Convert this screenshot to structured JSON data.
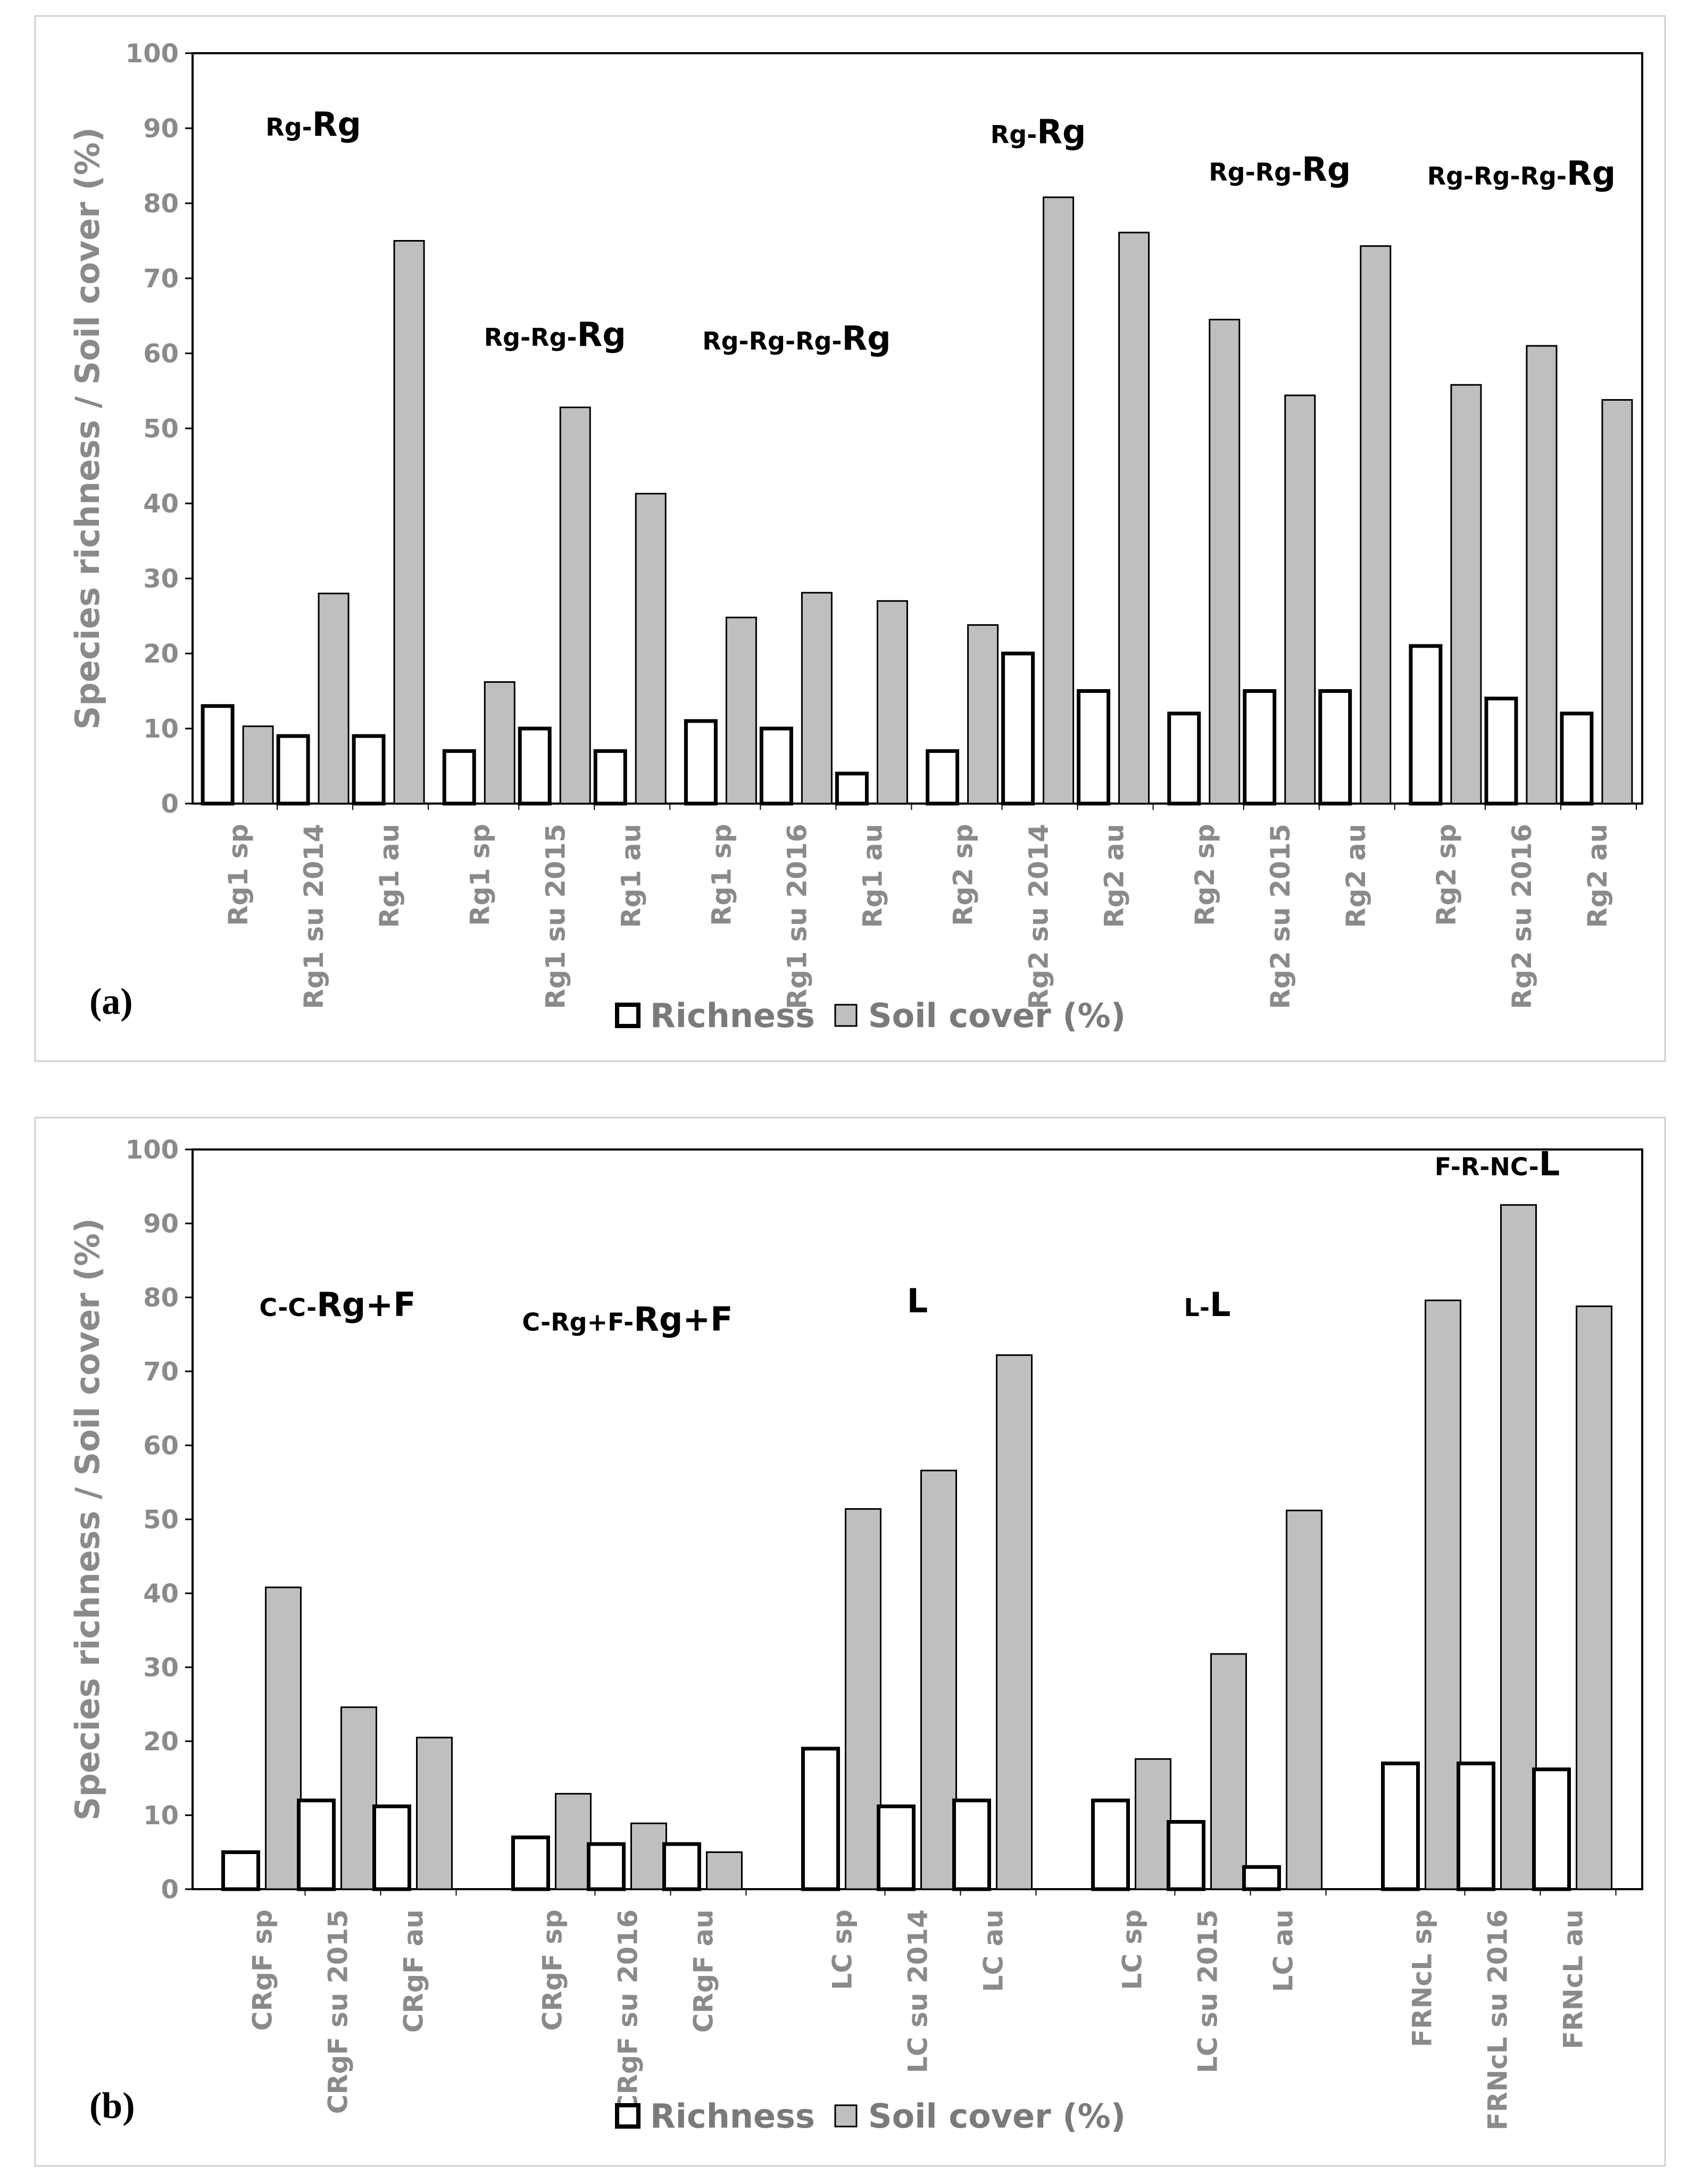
{
  "colors": {
    "richness_fill": "#ffffff",
    "richness_stroke": "#000000",
    "cover_fill": "#bfbfbf",
    "cover_stroke": "#000000",
    "axis_text": "#8a8a8a",
    "frame_border": "#d0d0d0"
  },
  "chart_data": [
    {
      "type": "bar",
      "panel_label": "(a)",
      "ylabel": "Species richness / Soil cover (%)",
      "ylim": [
        0,
        100
      ],
      "yticks": [
        "0",
        "10",
        "20",
        "30",
        "40",
        "50",
        "60",
        "70",
        "80",
        "90",
        "100"
      ],
      "grid": false,
      "legend": [
        "Richness",
        "Soil cover (%)"
      ],
      "legend_position": "bottom-center",
      "categories": [
        "Rg1 sp",
        "Rg1 su 2014",
        "Rg1 au",
        "Rg1 sp",
        "Rg1 su 2015",
        "Rg1 au",
        "Rg1 sp",
        "Rg1 su 2016",
        "Rg1 au",
        "Rg2 sp",
        "Rg2 su 2014",
        "Rg2 au",
        "Rg2 sp",
        "Rg2 su 2015",
        "Rg2 au",
        "Rg2 sp",
        "Rg2 su 2016",
        "Rg2 au"
      ],
      "series": [
        {
          "name": "Richness",
          "values": [
            13,
            9,
            9,
            7,
            10,
            7,
            11,
            10,
            4,
            7,
            20,
            15,
            12,
            15,
            15,
            21,
            14,
            12
          ]
        },
        {
          "name": "Soil cover (%)",
          "values": [
            10.3,
            28,
            75,
            16.2,
            52.8,
            41.3,
            24.8,
            28.1,
            27,
            23.8,
            80.8,
            76.1,
            64.5,
            54.4,
            74.3,
            55.8,
            61,
            53.8
          ]
        }
      ],
      "annotations": [
        {
          "group": 0,
          "text": "Rg-Rg",
          "value": 89
        },
        {
          "group": 1,
          "text": "Rg-Rg-Rg",
          "value": 61
        },
        {
          "group": 2,
          "text": "Rg-Rg-Rg-Rg",
          "value": 60.5
        },
        {
          "group": 3,
          "text": "Rg-Rg",
          "value": 88
        },
        {
          "group": 4,
          "text": "Rg-Rg-Rg",
          "value": 83
        },
        {
          "group": 5,
          "text": "Rg-Rg-Rg-Rg",
          "value": 82.5
        }
      ]
    },
    {
      "type": "bar",
      "panel_label": "(b)",
      "ylabel": "Species richness / Soil cover (%)",
      "ylim": [
        0,
        100
      ],
      "yticks": [
        "0",
        "10",
        "20",
        "30",
        "40",
        "50",
        "60",
        "70",
        "80",
        "90",
        "100"
      ],
      "grid": false,
      "legend": [
        "Richness",
        "Soil cover (%)"
      ],
      "legend_position": "bottom-center",
      "categories": [
        "CRgF sp",
        "CRgF su 2015",
        "CRgF au",
        "CRgF sp",
        "CRgF su 2016",
        "CRgF au",
        "LC sp",
        "LC su 2014",
        "LC au",
        "LC sp",
        "LC su 2015",
        "LC au",
        "FRNcL sp",
        "FRNcL su 2016",
        "FRNcL au"
      ],
      "series": [
        {
          "name": "Richness",
          "values": [
            5,
            12,
            11.2,
            7,
            6.1,
            6.1,
            19,
            11.2,
            12,
            12,
            9.1,
            3,
            17,
            17,
            16.2
          ]
        },
        {
          "name": "Soil cover (%)",
          "values": [
            40.8,
            24.6,
            20.5,
            12.9,
            8.9,
            5,
            51.4,
            56.6,
            72.2,
            17.6,
            31.8,
            51.2,
            79.6,
            92.5,
            78.8
          ]
        }
      ],
      "annotations": [
        {
          "group": 0,
          "text": "C-C-Rg+F",
          "value": 77.5
        },
        {
          "group": 1,
          "text": "C-Rg+F-Rg+F",
          "value": 75.5
        },
        {
          "group": 2,
          "text": "L",
          "value": 78
        },
        {
          "group": 3,
          "text": "L-L",
          "value": 77.5
        },
        {
          "group": 4,
          "text": "F-R-NC-L",
          "value": 96.5
        }
      ]
    }
  ]
}
